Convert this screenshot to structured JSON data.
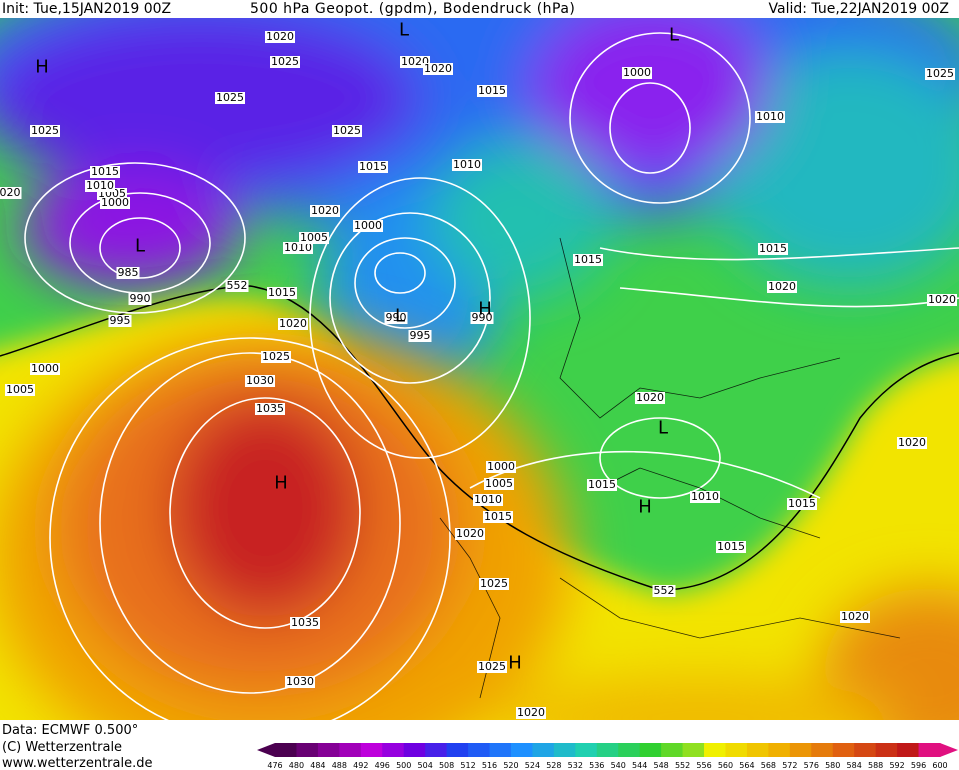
{
  "header": {
    "init": "Init: Tue,15JAN2019 00Z",
    "title": "500 hPa Geopot. (gpdm), Bodendruck (hPa)",
    "valid": "Valid: Tue,22JAN2019 00Z"
  },
  "footer": {
    "data": "Data: ECMWF   0.500°",
    "copyright": "(C) Wetterzentrale",
    "url": "www.wetterzentrale.de"
  },
  "map": {
    "isobar_labels": [
      "1020",
      "1025",
      "1020",
      "1020",
      "1025",
      "1015",
      "1025",
      "1025",
      "1000",
      "1010",
      "1025",
      "1015",
      "1010",
      "1005",
      "1000",
      "020",
      "1015",
      "1010",
      "1020",
      "1000",
      "1005",
      "1010",
      "985",
      "990",
      "995",
      "552",
      "1015",
      "1015",
      "1015",
      "1020",
      "1020",
      "1020",
      "990",
      "995",
      "990",
      "1000",
      "1005",
      "1025",
      "1030",
      "1035",
      "1020",
      "1020",
      "1000",
      "1005",
      "1010",
      "1015",
      "1015",
      "1010",
      "1015",
      "1020",
      "1015",
      "1025",
      "552",
      "1020",
      "1035",
      "1025",
      "1030",
      "1020"
    ],
    "pressure_centers": [
      "H",
      "L",
      "L",
      "L",
      "L",
      "H",
      "H",
      "L",
      "H",
      "H"
    ]
  },
  "colorbar": {
    "ticks": [
      "476",
      "480",
      "484",
      "488",
      "492",
      "496",
      "500",
      "504",
      "508",
      "512",
      "516",
      "520",
      "524",
      "528",
      "532",
      "536",
      "540",
      "544",
      "548",
      "552",
      "556",
      "560",
      "564",
      "568",
      "572",
      "576",
      "580",
      "584",
      "588",
      "592",
      "596",
      "600"
    ]
  }
}
